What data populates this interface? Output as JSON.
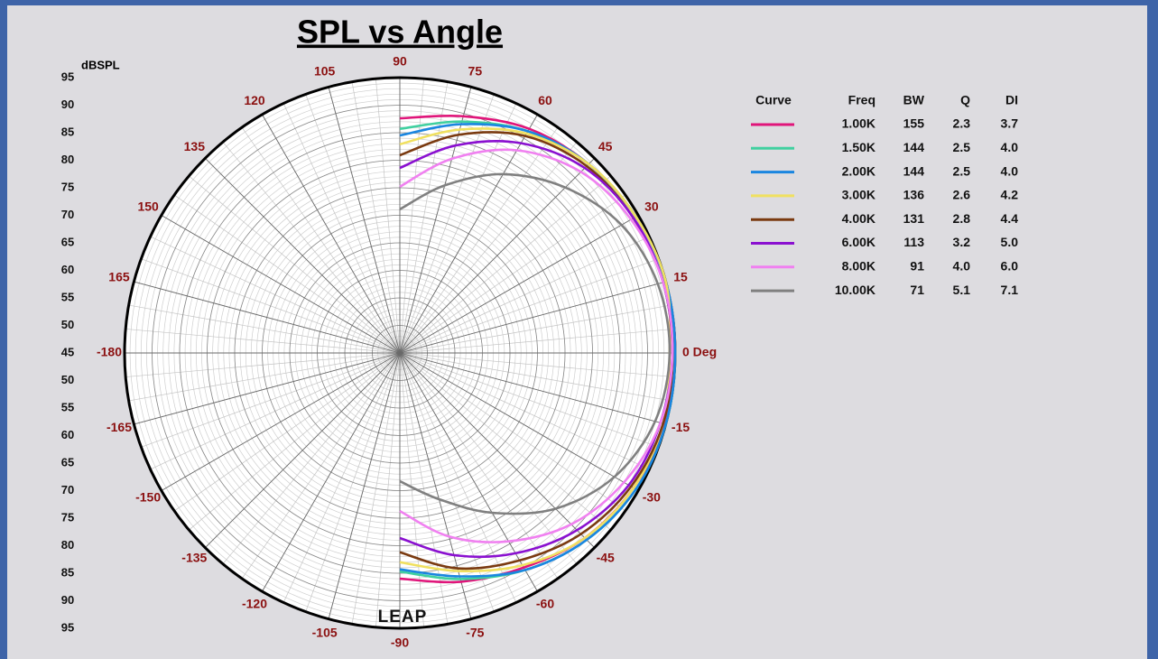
{
  "chart_data": {
    "type": "polar",
    "title": "SPL vs Angle",
    "radial_label": "dBSPL",
    "watermark": "LEAP",
    "rlim": [
      45,
      95
    ],
    "rticks": [
      45,
      50,
      55,
      60,
      65,
      70,
      75,
      80,
      85,
      90,
      95
    ],
    "angle_ticks": [
      {
        "value": 0,
        "label": "0 Deg"
      },
      15,
      30,
      45,
      60,
      75,
      90,
      105,
      120,
      135,
      150,
      165,
      -180,
      -165,
      -150,
      -135,
      -120,
      -105,
      -90,
      -75,
      -60,
      -45,
      -30,
      -15
    ],
    "theta": [
      90,
      75,
      60,
      45,
      30,
      15,
      0,
      -15,
      -30,
      -45,
      -60,
      -75,
      -90
    ],
    "legend_headers": [
      "Curve",
      "Freq",
      "BW",
      "Q",
      "DI"
    ],
    "series": [
      {
        "name": "1.00K",
        "color": "#e0157a",
        "bw": 155,
        "q": 2.3,
        "di": 3.7,
        "values": [
          87.6,
          89.5,
          92,
          93.5,
          94.5,
          95,
          95,
          94.8,
          94,
          92.5,
          90,
          88,
          86
        ]
      },
      {
        "name": "1.50K",
        "color": "#40d0a0",
        "bw": 144,
        "q": 2.5,
        "di": 4.0,
        "values": [
          85.7,
          88.5,
          91.5,
          93.5,
          94.5,
          95,
          95,
          95,
          94.5,
          93,
          90.5,
          87.5,
          84.7
        ]
      },
      {
        "name": "2.00K",
        "color": "#1a86e0",
        "bw": 144,
        "q": 2.5,
        "di": 4.0,
        "values": [
          84.5,
          88,
          91.5,
          93.5,
          94.5,
          95,
          95,
          95,
          94.5,
          93,
          90.5,
          87,
          84.3
        ]
      },
      {
        "name": "3.00K",
        "color": "#f0e060",
        "bw": 136,
        "q": 2.6,
        "di": 4.2,
        "values": [
          82.9,
          87,
          91,
          93.5,
          94.5,
          95,
          94,
          94.5,
          94,
          92.5,
          89.5,
          86,
          83
        ]
      },
      {
        "name": "4.00K",
        "color": "#7a3a10",
        "bw": 131,
        "q": 2.8,
        "di": 4.4,
        "values": [
          80.9,
          86,
          90.5,
          93,
          94,
          94.5,
          94.5,
          94.5,
          93.5,
          91.5,
          88.5,
          85.5,
          81.2
        ]
      },
      {
        "name": "6.00K",
        "color": "#8a10d0",
        "bw": 113,
        "q": 3.2,
        "di": 5.0,
        "values": [
          78.6,
          84,
          89,
          92.5,
          94,
          94.5,
          94.5,
          94,
          93,
          90.5,
          87,
          83,
          78.6
        ]
      },
      {
        "name": "8.00K",
        "color": "#f080f0",
        "bw": 91,
        "q": 4.0,
        "di": 6.0,
        "values": [
          75.2,
          81.5,
          87.5,
          91.5,
          93.5,
          94.5,
          94.5,
          94,
          92,
          89,
          84.5,
          79.5,
          73.7
        ]
      },
      {
        "name": "10.00K",
        "color": "#808080",
        "bw": 71,
        "q": 5.1,
        "di": 7.1,
        "values": [
          71.1,
          76.5,
          82.5,
          87.5,
          91.5,
          93.5,
          94,
          93,
          90,
          85,
          78.5,
          72.5,
          68.3
        ]
      }
    ]
  }
}
